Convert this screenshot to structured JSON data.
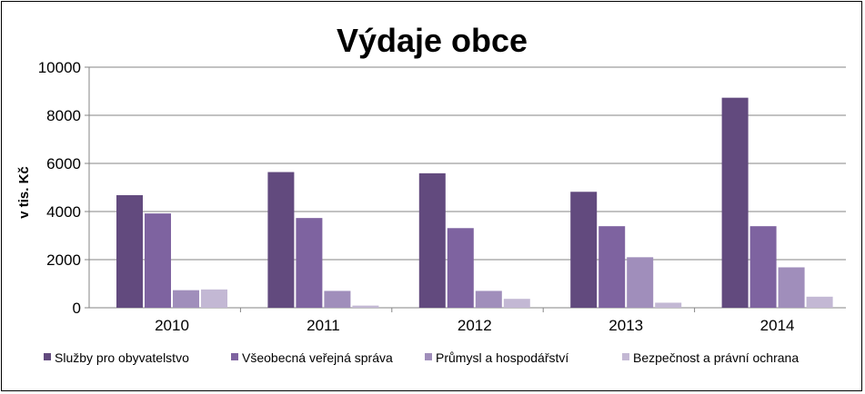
{
  "chart_data": {
    "type": "bar",
    "title": "Výdaje obce",
    "xlabel": "",
    "ylabel": "v tis. Kč",
    "ylim": [
      0,
      10000
    ],
    "yticks": [
      0,
      2000,
      4000,
      6000,
      8000,
      10000
    ],
    "grid": true,
    "legend_position": "bottom",
    "categories": [
      "2010",
      "2011",
      "2012",
      "2013",
      "2014"
    ],
    "series": [
      {
        "name": "Služby pro obyvatelstvo",
        "color": "#624A7E",
        "values": [
          4680,
          5640,
          5590,
          4820,
          8730
        ]
      },
      {
        "name": "Všeobecná veřejná správa",
        "color": "#7E63A0",
        "values": [
          3920,
          3730,
          3310,
          3390,
          3390
        ]
      },
      {
        "name": "Průmysl a hospodářství",
        "color": "#A08EBB",
        "values": [
          730,
          700,
          700,
          2100,
          1680
        ]
      },
      {
        "name": "Bezpečnost a právní ochrana",
        "color": "#C3B8D4",
        "values": [
          760,
          90,
          370,
          210,
          460
        ]
      }
    ]
  }
}
